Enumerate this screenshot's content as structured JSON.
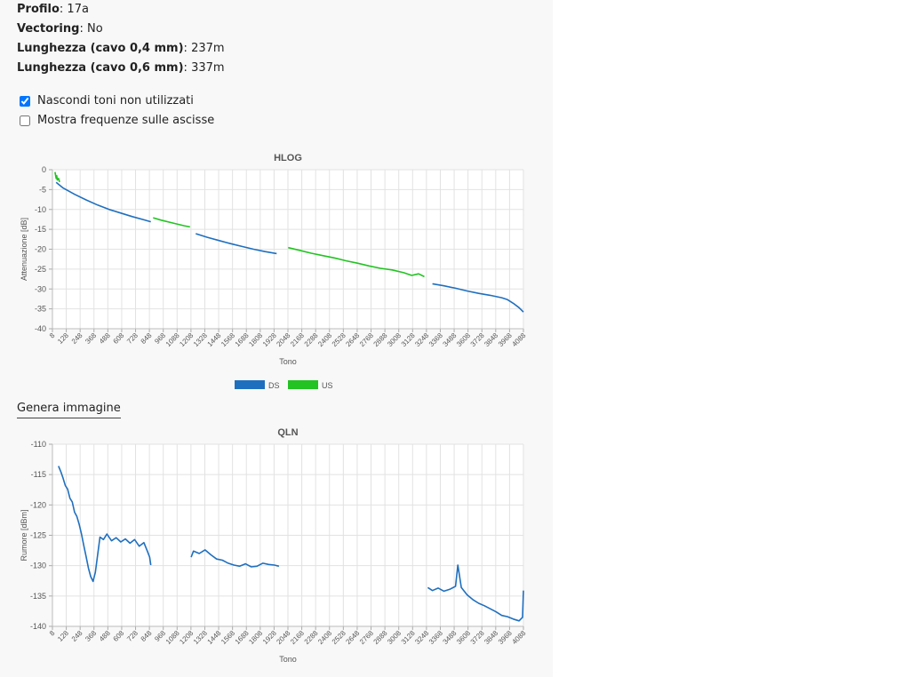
{
  "info": [
    {
      "label": "Profilo",
      "value": "17a"
    },
    {
      "label": "Vectoring",
      "value": "No"
    },
    {
      "label": "Lunghezza (cavo 0,4 mm)",
      "value": "237m"
    },
    {
      "label": "Lunghezza (cavo 0,6 mm)",
      "value": "337m"
    }
  ],
  "options": [
    {
      "label": "Nascondi toni non utilizzati",
      "checked": true
    },
    {
      "label": "Mostra frequenze sulle ascisse",
      "checked": false
    }
  ],
  "generate_link": "Genera immagine",
  "chart_data": [
    {
      "type": "line",
      "title": "HLOG",
      "xlabel": "Tono",
      "ylabel": "Attenuazione [dB]",
      "xlim": [
        8,
        4088
      ],
      "ylim": [
        -40,
        0
      ],
      "x_ticks": [
        "8",
        "128",
        "248",
        "368",
        "488",
        "608",
        "728",
        "848",
        "968",
        "1088",
        "1208",
        "1328",
        "1448",
        "1568",
        "1688",
        "1808",
        "1928",
        "2048",
        "2168",
        "2288",
        "2408",
        "2528",
        "2648",
        "2768",
        "2888",
        "3008",
        "3128",
        "3248",
        "3368",
        "3488",
        "3608",
        "3728",
        "3848",
        "3968",
        "4088"
      ],
      "y_ticks": [
        "0",
        "-5",
        "-10",
        "-15",
        "-20",
        "-25",
        "-30",
        "-35",
        "-40"
      ],
      "grid": true,
      "legend": "bottom",
      "colors": {
        "DS": "#1f6fbf",
        "US": "#22c322"
      },
      "series": [
        {
          "name": "DS",
          "segments": [
            [
              [
                40,
                -3.2
              ],
              [
                100,
                -4.6
              ],
              [
                200,
                -6.2
              ],
              [
                300,
                -7.6
              ],
              [
                400,
                -8.9
              ],
              [
                500,
                -10
              ],
              [
                600,
                -10.9
              ],
              [
                700,
                -11.8
              ],
              [
                800,
                -12.6
              ],
              [
                860,
                -13.1
              ]
            ],
            [
              [
                1250,
                -16.1
              ],
              [
                1350,
                -17
              ],
              [
                1450,
                -17.8
              ],
              [
                1550,
                -18.6
              ],
              [
                1650,
                -19.3
              ],
              [
                1750,
                -20
              ],
              [
                1850,
                -20.6
              ],
              [
                1950,
                -21.1
              ]
            ],
            [
              [
                3300,
                -28.7
              ],
              [
                3400,
                -29.2
              ],
              [
                3500,
                -29.8
              ],
              [
                3600,
                -30.5
              ],
              [
                3700,
                -31.1
              ],
              [
                3800,
                -31.6
              ],
              [
                3900,
                -32.2
              ],
              [
                3950,
                -32.7
              ],
              [
                4000,
                -33.6
              ],
              [
                4050,
                -34.7
              ],
              [
                4088,
                -35.8
              ]
            ]
          ]
        },
        {
          "name": "US",
          "segments": [
            [
              [
                30,
                -0.6
              ],
              [
                40,
                -2.2
              ],
              [
                45,
                -1.5
              ],
              [
                50,
                -2.6
              ],
              [
                60,
                -2.2
              ],
              [
                70,
                -3.1
              ]
            ],
            [
              [
                880,
                -12.1
              ],
              [
                950,
                -12.7
              ],
              [
                1050,
                -13.4
              ],
              [
                1150,
                -14.1
              ],
              [
                1200,
                -14.4
              ]
            ],
            [
              [
                2050,
                -19.6
              ],
              [
                2150,
                -20.3
              ],
              [
                2250,
                -21
              ],
              [
                2350,
                -21.6
              ],
              [
                2450,
                -22.2
              ],
              [
                2550,
                -22.9
              ],
              [
                2650,
                -23.5
              ],
              [
                2750,
                -24.2
              ],
              [
                2850,
                -24.8
              ],
              [
                2950,
                -25.2
              ],
              [
                3050,
                -25.9
              ],
              [
                3120,
                -26.6
              ],
              [
                3180,
                -26.2
              ],
              [
                3230,
                -26.9
              ]
            ]
          ]
        }
      ]
    },
    {
      "type": "line",
      "title": "QLN",
      "xlabel": "Tono",
      "ylabel": "Rumore [dBm]",
      "xlim": [
        8,
        4088
      ],
      "ylim": [
        -140,
        -110
      ],
      "x_ticks": [
        "8",
        "128",
        "248",
        "368",
        "488",
        "608",
        "728",
        "848",
        "968",
        "1088",
        "1208",
        "1328",
        "1448",
        "1568",
        "1688",
        "1808",
        "1928",
        "2048",
        "2168",
        "2288",
        "2408",
        "2528",
        "2648",
        "2768",
        "2888",
        "3008",
        "3128",
        "3248",
        "3368",
        "3488",
        "3608",
        "3728",
        "3848",
        "3968",
        "4088"
      ],
      "y_ticks": [
        "-110",
        "-115",
        "-120",
        "-125",
        "-130",
        "-135",
        "-140"
      ],
      "grid": true,
      "colors": {
        "DS": "#1f6fbf"
      },
      "series": [
        {
          "name": "DS",
          "segments": [
            [
              [
                60,
                -113.6
              ],
              [
                80,
                -114.5
              ],
              [
                100,
                -115.6
              ],
              [
                120,
                -116.8
              ],
              [
                140,
                -117.4
              ],
              [
                160,
                -118.9
              ],
              [
                180,
                -119.5
              ],
              [
                200,
                -121.2
              ],
              [
                220,
                -121.9
              ],
              [
                240,
                -123.2
              ],
              [
                260,
                -124.8
              ],
              [
                280,
                -126.7
              ],
              [
                300,
                -128.5
              ],
              [
                320,
                -130.4
              ],
              [
                340,
                -131.8
              ],
              [
                360,
                -132.6
              ],
              [
                380,
                -131.1
              ],
              [
                400,
                -128.2
              ],
              [
                420,
                -125.3
              ],
              [
                450,
                -125.7
              ],
              [
                480,
                -124.8
              ],
              [
                520,
                -125.9
              ],
              [
                560,
                -125.4
              ],
              [
                600,
                -126.1
              ],
              [
                640,
                -125.6
              ],
              [
                680,
                -126.3
              ],
              [
                720,
                -125.7
              ],
              [
                760,
                -126.8
              ],
              [
                800,
                -126.2
              ],
              [
                830,
                -127.6
              ],
              [
                850,
                -128.6
              ],
              [
                860,
                -129.9
              ]
            ],
            [
              [
                1210,
                -128.6
              ],
              [
                1230,
                -127.6
              ],
              [
                1280,
                -128
              ],
              [
                1330,
                -127.4
              ],
              [
                1380,
                -128.2
              ],
              [
                1430,
                -128.9
              ],
              [
                1480,
                -129.1
              ],
              [
                1530,
                -129.6
              ],
              [
                1580,
                -129.9
              ],
              [
                1630,
                -130.1
              ],
              [
                1680,
                -129.7
              ],
              [
                1730,
                -130.2
              ],
              [
                1780,
                -130.1
              ],
              [
                1830,
                -129.6
              ],
              [
                1880,
                -129.8
              ],
              [
                1930,
                -129.9
              ],
              [
                1970,
                -130.1
              ]
            ],
            [
              [
                3260,
                -133.6
              ],
              [
                3300,
                -134.1
              ],
              [
                3350,
                -133.7
              ],
              [
                3400,
                -134.2
              ],
              [
                3450,
                -133.9
              ],
              [
                3500,
                -133.4
              ],
              [
                3520,
                -129.9
              ],
              [
                3550,
                -133.6
              ],
              [
                3600,
                -134.8
              ],
              [
                3650,
                -135.6
              ],
              [
                3700,
                -136.2
              ],
              [
                3750,
                -136.6
              ],
              [
                3800,
                -137.1
              ],
              [
                3850,
                -137.6
              ],
              [
                3900,
                -138.2
              ],
              [
                3950,
                -138.4
              ],
              [
                4000,
                -138.8
              ],
              [
                4050,
                -139.1
              ],
              [
                4080,
                -138.5
              ],
              [
                4088,
                -134.1
              ]
            ]
          ]
        }
      ]
    }
  ]
}
